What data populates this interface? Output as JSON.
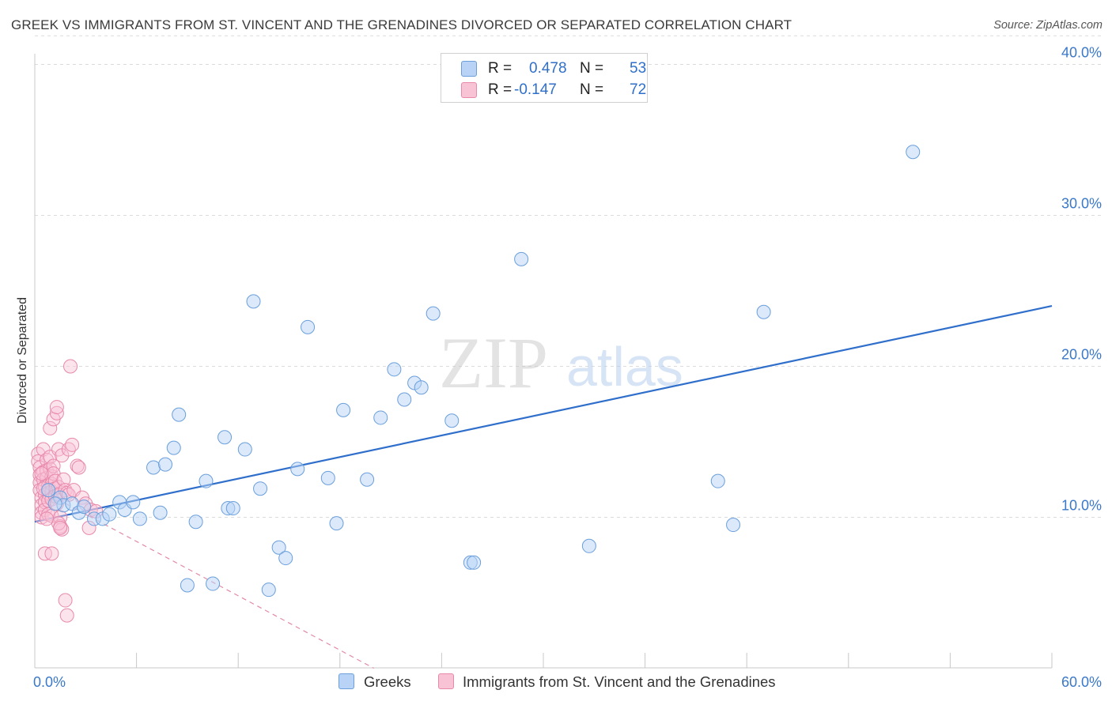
{
  "title": "GREEK VS IMMIGRANTS FROM ST. VINCENT AND THE GRENADINES DIVORCED OR SEPARATED CORRELATION CHART",
  "source": "Source: ZipAtlas.com",
  "watermark": {
    "zip": "ZIP",
    "atlas": "atlas"
  },
  "legend": {
    "rows": [
      {
        "r_label": "R =",
        "r_value": "0.478",
        "n_label": "N =",
        "n_value": "53"
      },
      {
        "r_label": "R =",
        "r_value": "-0.147",
        "n_label": "N =",
        "n_value": "72"
      }
    ]
  },
  "bottom_legend": {
    "greeks": "Greeks",
    "svg_imm": "Immigrants from St. Vincent and the Grenadines"
  },
  "colors": {
    "blue_fill": "#b8d3f5",
    "blue_stroke": "#6a9fdc",
    "blue_line": "#2f6fcb",
    "pink_fill": "#f9c3d6",
    "pink_stroke": "#e889aa",
    "pink_line": "#e28aa6",
    "tick_text": "#3a78c9",
    "grid": "#dcdcdc"
  },
  "chart_data": {
    "type": "scatter",
    "title": "GREEK VS IMMIGRANTS FROM ST. VINCENT AND THE GRENADINES DIVORCED OR SEPARATED CORRELATION CHART",
    "xlabel": "",
    "ylabel": "Divorced or Separated",
    "xlim": [
      0,
      60
    ],
    "ylim": [
      0,
      42
    ],
    "x_tick_labels": [
      "0.0%",
      "60.0%"
    ],
    "y_ticks": [
      10,
      20,
      30,
      40
    ],
    "y_tick_labels": [
      "10.0%",
      "20.0%",
      "30.0%",
      "40.0%"
    ],
    "grid": true,
    "legend_position": "top-center",
    "series": [
      {
        "name": "Greeks",
        "R": 0.478,
        "N": 53,
        "points": [
          [
            0.8,
            11.8
          ],
          [
            1.5,
            11.3
          ],
          [
            1.7,
            10.8
          ],
          [
            2.2,
            10.9
          ],
          [
            2.6,
            10.3
          ],
          [
            3.5,
            9.9
          ],
          [
            4.0,
            9.9
          ],
          [
            4.4,
            10.2
          ],
          [
            5.0,
            11.0
          ],
          [
            5.3,
            10.5
          ],
          [
            5.8,
            11.0
          ],
          [
            6.2,
            9.9
          ],
          [
            7.0,
            13.3
          ],
          [
            7.4,
            10.3
          ],
          [
            7.7,
            13.5
          ],
          [
            8.2,
            14.6
          ],
          [
            8.5,
            16.8
          ],
          [
            9.0,
            5.5
          ],
          [
            9.5,
            9.7
          ],
          [
            10.1,
            12.4
          ],
          [
            10.5,
            5.6
          ],
          [
            11.2,
            15.3
          ],
          [
            11.4,
            10.6
          ],
          [
            11.7,
            10.6
          ],
          [
            12.4,
            14.5
          ],
          [
            12.9,
            24.3
          ],
          [
            13.3,
            11.9
          ],
          [
            13.8,
            5.2
          ],
          [
            14.4,
            8.0
          ],
          [
            14.8,
            7.3
          ],
          [
            15.5,
            13.2
          ],
          [
            16.1,
            22.6
          ],
          [
            17.3,
            12.6
          ],
          [
            17.8,
            9.6
          ],
          [
            18.2,
            17.1
          ],
          [
            19.6,
            12.5
          ],
          [
            20.4,
            16.6
          ],
          [
            21.2,
            19.8
          ],
          [
            21.8,
            17.8
          ],
          [
            22.4,
            18.9
          ],
          [
            22.8,
            18.6
          ],
          [
            23.5,
            23.5
          ],
          [
            24.6,
            16.4
          ],
          [
            25.7,
            7.0
          ],
          [
            25.9,
            7.0
          ],
          [
            28.7,
            27.1
          ],
          [
            32.7,
            8.1
          ],
          [
            40.3,
            12.4
          ],
          [
            41.2,
            9.5
          ],
          [
            43.0,
            23.6
          ],
          [
            51.8,
            34.2
          ],
          [
            1.2,
            10.9
          ],
          [
            2.9,
            10.7
          ]
        ],
        "trend": {
          "x": [
            0,
            60
          ],
          "y": [
            9.7,
            24.0
          ]
        }
      },
      {
        "name": "Immigrants from St. Vincent and the Grenadines",
        "R": -0.147,
        "N": 72,
        "points": [
          [
            0.2,
            14.2
          ],
          [
            0.2,
            13.7
          ],
          [
            0.3,
            13.3
          ],
          [
            0.3,
            12.8
          ],
          [
            0.3,
            12.3
          ],
          [
            0.3,
            11.8
          ],
          [
            0.4,
            11.3
          ],
          [
            0.4,
            10.8
          ],
          [
            0.4,
            10.3
          ],
          [
            0.4,
            10.0
          ],
          [
            0.5,
            14.5
          ],
          [
            0.5,
            13.0
          ],
          [
            0.5,
            12.5
          ],
          [
            0.6,
            12.0
          ],
          [
            0.6,
            11.5
          ],
          [
            0.6,
            11.0
          ],
          [
            0.6,
            10.5
          ],
          [
            0.7,
            13.8
          ],
          [
            0.7,
            13.1
          ],
          [
            0.7,
            12.6
          ],
          [
            0.8,
            12.1
          ],
          [
            0.8,
            11.6
          ],
          [
            0.8,
            11.1
          ],
          [
            0.8,
            10.2
          ],
          [
            0.9,
            15.9
          ],
          [
            0.9,
            14.0
          ],
          [
            0.9,
            13.2
          ],
          [
            1.0,
            12.7
          ],
          [
            1.0,
            12.2
          ],
          [
            1.0,
            11.7
          ],
          [
            1.0,
            11.2
          ],
          [
            1.0,
            10.1
          ],
          [
            1.1,
            16.5
          ],
          [
            1.1,
            13.4
          ],
          [
            1.1,
            12.9
          ],
          [
            1.2,
            12.4
          ],
          [
            1.2,
            11.9
          ],
          [
            1.2,
            11.4
          ],
          [
            1.3,
            10.9
          ],
          [
            1.3,
            16.9
          ],
          [
            1.3,
            17.3
          ],
          [
            1.4,
            14.5
          ],
          [
            1.4,
            12.0
          ],
          [
            1.4,
            11.5
          ],
          [
            1.5,
            10.0
          ],
          [
            1.5,
            9.4
          ],
          [
            1.6,
            9.2
          ],
          [
            1.6,
            14.1
          ],
          [
            1.7,
            12.5
          ],
          [
            1.8,
            11.8
          ],
          [
            1.9,
            11.6
          ],
          [
            2.0,
            14.5
          ],
          [
            2.0,
            11.5
          ],
          [
            2.1,
            20.0
          ],
          [
            2.2,
            14.8
          ],
          [
            2.3,
            11.8
          ],
          [
            2.5,
            13.4
          ],
          [
            2.6,
            13.3
          ],
          [
            2.8,
            11.3
          ],
          [
            3.0,
            10.9
          ],
          [
            3.2,
            9.3
          ],
          [
            3.3,
            10.5
          ],
          [
            3.6,
            10.4
          ],
          [
            0.6,
            7.6
          ],
          [
            1.0,
            7.6
          ],
          [
            1.4,
            9.6
          ],
          [
            1.5,
            9.3
          ],
          [
            1.8,
            4.5
          ],
          [
            1.9,
            3.5
          ],
          [
            0.4,
            12.9
          ],
          [
            0.5,
            11.9
          ],
          [
            0.7,
            9.9
          ]
        ],
        "trend": {
          "x": [
            0,
            20
          ],
          "y": [
            12.0,
            0.0
          ]
        }
      }
    ]
  }
}
